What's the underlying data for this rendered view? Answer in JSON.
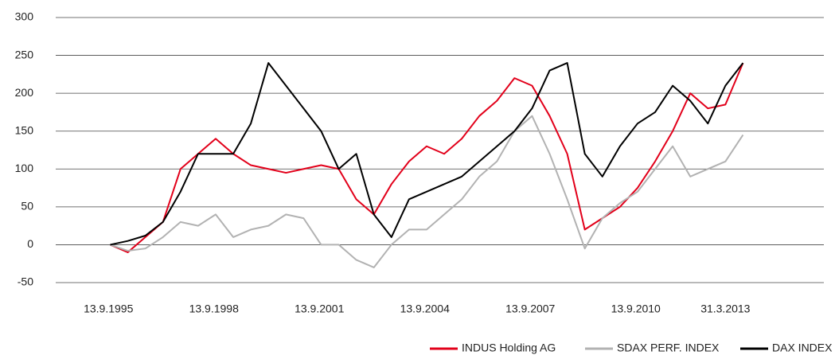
{
  "chart_data": {
    "type": "line",
    "x": [
      1995.75,
      1996.25,
      1996.75,
      1997.25,
      1997.75,
      1998.25,
      1998.75,
      1999.25,
      1999.75,
      2000.25,
      2000.75,
      2001.25,
      2001.75,
      2002.25,
      2002.75,
      2003.25,
      2003.75,
      2004.25,
      2004.75,
      2005.25,
      2005.75,
      2006.25,
      2006.75,
      2007.25,
      2007.75,
      2008.25,
      2008.75,
      2009.25,
      2009.75,
      2010.25,
      2010.75,
      2011.25,
      2011.75,
      2012.25,
      2012.75,
      2013.25,
      2013.75
    ],
    "series": [
      {
        "name": "INDUS Holding AG",
        "color": "#e2001a",
        "values": [
          0,
          -10,
          10,
          30,
          100,
          120,
          140,
          120,
          105,
          100,
          95,
          100,
          105,
          100,
          60,
          40,
          80,
          110,
          130,
          120,
          140,
          170,
          190,
          220,
          210,
          170,
          120,
          20,
          35,
          50,
          75,
          110,
          150,
          200,
          180,
          185,
          240
        ]
      },
      {
        "name": "SDAX PERF. INDEX",
        "color": "#b2b2b2",
        "values": [
          0,
          -8,
          -5,
          10,
          30,
          25,
          40,
          10,
          20,
          25,
          40,
          35,
          0,
          0,
          -20,
          -30,
          0,
          20,
          20,
          40,
          60,
          90,
          110,
          150,
          170,
          120,
          60,
          -5,
          35,
          55,
          70,
          100,
          130,
          90,
          100,
          110,
          145
        ]
      },
      {
        "name": "DAX INDEX",
        "color": "#000000",
        "values": [
          0,
          5,
          12,
          30,
          70,
          120,
          120,
          120,
          160,
          240,
          210,
          180,
          150,
          100,
          120,
          40,
          10,
          60,
          70,
          80,
          90,
          110,
          130,
          150,
          180,
          230,
          240,
          120,
          90,
          130,
          160,
          175,
          210,
          190,
          160,
          210,
          240
        ]
      }
    ],
    "xlim": [
      1994.2,
      2016.05
    ],
    "xticks": [
      {
        "value": 1995.7,
        "label": "13.9.1995"
      },
      {
        "value": 1998.7,
        "label": "13.9.1998"
      },
      {
        "value": 2001.7,
        "label": "13.9.2001"
      },
      {
        "value": 2004.7,
        "label": "13.9.2004"
      },
      {
        "value": 2007.7,
        "label": "13.9.2007"
      },
      {
        "value": 2010.7,
        "label": "13.9.2010"
      },
      {
        "value": 2013.25,
        "label": "31.3.2013"
      }
    ],
    "ylim": [
      -50,
      300
    ],
    "yticks": [
      -50,
      0,
      50,
      100,
      150,
      200,
      250,
      300
    ],
    "grid": true,
    "legend": "bottom-right"
  }
}
